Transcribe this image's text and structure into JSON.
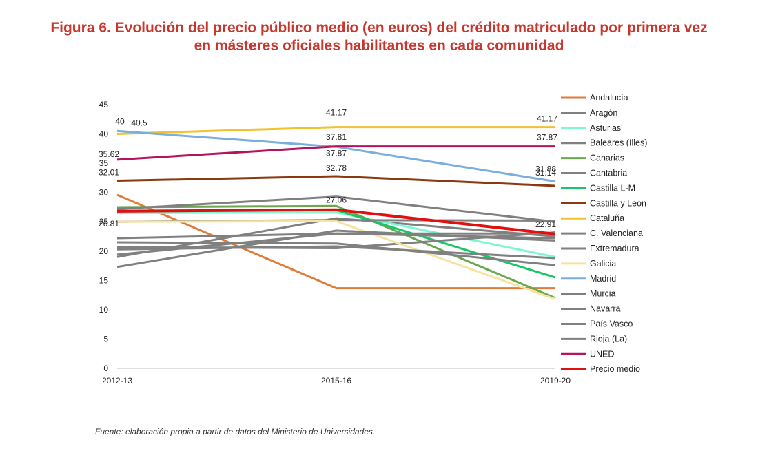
{
  "header": {
    "title_line1": "Figura 6. Evolución del precio público medio (en euros) del crédito matriculado por primera vez",
    "title_line2": "en másteres oficiales habilitantes en cada comunidad"
  },
  "footer": {
    "source": "Fuente: elaboración propia a partir de datos del Ministerio de Universidades."
  },
  "chart_data": {
    "type": "line",
    "x": [
      "2012-13",
      "2015-16",
      "2019-20"
    ],
    "ylim": [
      0,
      45
    ],
    "yticks": [
      0,
      5,
      10,
      15,
      20,
      25,
      30,
      35,
      40,
      45
    ],
    "grid": false,
    "legend_position": "right",
    "series": [
      {
        "name": "Andalucía",
        "color": "#e07b39",
        "values": [
          29.6,
          13.68,
          13.68
        ],
        "labels": [
          "",
          "",
          ""
        ]
      },
      {
        "name": "Aragón",
        "color": "#808080",
        "values": [
          19.0,
          25.6,
          22.5
        ],
        "labels": [
          "",
          "",
          ""
        ]
      },
      {
        "name": "Asturias",
        "color": "#7ff5d4",
        "values": [
          26.5,
          26.6,
          19.0
        ],
        "labels": [
          "",
          "",
          ""
        ]
      },
      {
        "name": "Baleares (Illes)",
        "color": "#808080",
        "values": [
          22.2,
          23.0,
          23.0
        ],
        "labels": [
          "",
          "",
          ""
        ]
      },
      {
        "name": "Canarias",
        "color": "#6aa84f",
        "values": [
          27.5,
          27.7,
          12.0
        ],
        "labels": [
          "",
          "",
          ""
        ]
      },
      {
        "name": "Cantabria",
        "color": "#808080",
        "values": [
          27.2,
          29.3,
          25.0
        ],
        "labels": [
          "",
          "",
          ""
        ]
      },
      {
        "name": "Castilla L-M",
        "color": "#19c569",
        "values": [
          26.9,
          27.0,
          15.5
        ],
        "labels": [
          "",
          "",
          ""
        ]
      },
      {
        "name": "Castilla y León",
        "color": "#8b3a0f",
        "values": [
          32.01,
          32.78,
          31.14
        ],
        "labels": [
          "32.01",
          "32.78",
          "31.14"
        ]
      },
      {
        "name": "Cataluña",
        "color": "#f2c12e",
        "values": [
          40.0,
          41.17,
          41.17
        ],
        "labels": [
          "40",
          "41.17",
          "41.17"
        ]
      },
      {
        "name": "C. Valenciana",
        "color": "#808080",
        "values": [
          25.0,
          25.3,
          25.2
        ],
        "labels": [
          "",
          "",
          ""
        ]
      },
      {
        "name": "Extremadura",
        "color": "#808080",
        "values": [
          20.7,
          20.5,
          23.2
        ],
        "labels": [
          "",
          "",
          ""
        ]
      },
      {
        "name": "Galicia",
        "color": "#f7e3a0",
        "values": [
          25.0,
          25.1,
          11.8
        ],
        "labels": [
          "",
          "",
          ""
        ]
      },
      {
        "name": "Madrid",
        "color": "#7aaedc",
        "values": [
          40.5,
          37.81,
          31.88
        ],
        "labels": [
          "40.5",
          "37.81",
          "31.88"
        ]
      },
      {
        "name": "Murcia",
        "color": "#808080",
        "values": [
          17.3,
          23.5,
          21.8
        ],
        "labels": [
          "",
          "",
          ""
        ]
      },
      {
        "name": "Navarra",
        "color": "#808080",
        "values": [
          19.4,
          23.0,
          22.2
        ],
        "labels": [
          "",
          "",
          ""
        ]
      },
      {
        "name": "País Vasco",
        "color": "#808080",
        "values": [
          21.5,
          21.3,
          17.6
        ],
        "labels": [
          "",
          "",
          ""
        ]
      },
      {
        "name": "Rioja (La)",
        "color": "#808080",
        "values": [
          20.3,
          20.8,
          18.8
        ],
        "labels": [
          "",
          "",
          ""
        ]
      },
      {
        "name": "UNED",
        "color": "#b5135e",
        "values": [
          35.62,
          37.87,
          37.87
        ],
        "labels": [
          "35.62",
          "37.87",
          "37.87"
        ]
      },
      {
        "name": "Precio medio",
        "color": "#e01010",
        "values": [
          26.81,
          27.06,
          22.91
        ],
        "labels": [
          "26.81",
          "27.06",
          "22.91"
        ]
      }
    ]
  }
}
